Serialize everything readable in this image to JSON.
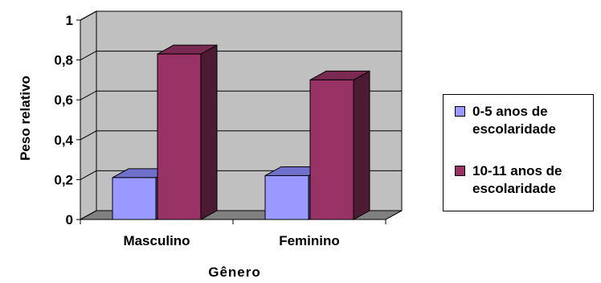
{
  "chart_data": {
    "type": "bar",
    "title": "",
    "xlabel": "Gênero",
    "ylabel": "Peso relativo",
    "categories": [
      "Masculino",
      "Feminino"
    ],
    "ylim": [
      0,
      1
    ],
    "yticks": [
      "0",
      "0,2",
      "0,4",
      "0,6",
      "0,8",
      "1"
    ],
    "y_tick_values": [
      0,
      0.2,
      0.4,
      0.6,
      0.8,
      1
    ],
    "grid": true,
    "style": "3d-clustered-column",
    "legend_position": "right",
    "series": [
      {
        "name": "0-5 anos de escolaridade",
        "values": [
          0.21,
          0.22
        ],
        "color": "#9999ff",
        "side_color": "#4d4d80",
        "top_color": "#7070cc"
      },
      {
        "name": "10-11 anos de escolaridade",
        "values": [
          0.83,
          0.7
        ],
        "color": "#993366",
        "side_color": "#4d1a33",
        "top_color": "#7a2952"
      }
    ],
    "colors": {
      "wall": "#c0c0c0",
      "floor": "#808080",
      "grid": "#000000"
    }
  }
}
